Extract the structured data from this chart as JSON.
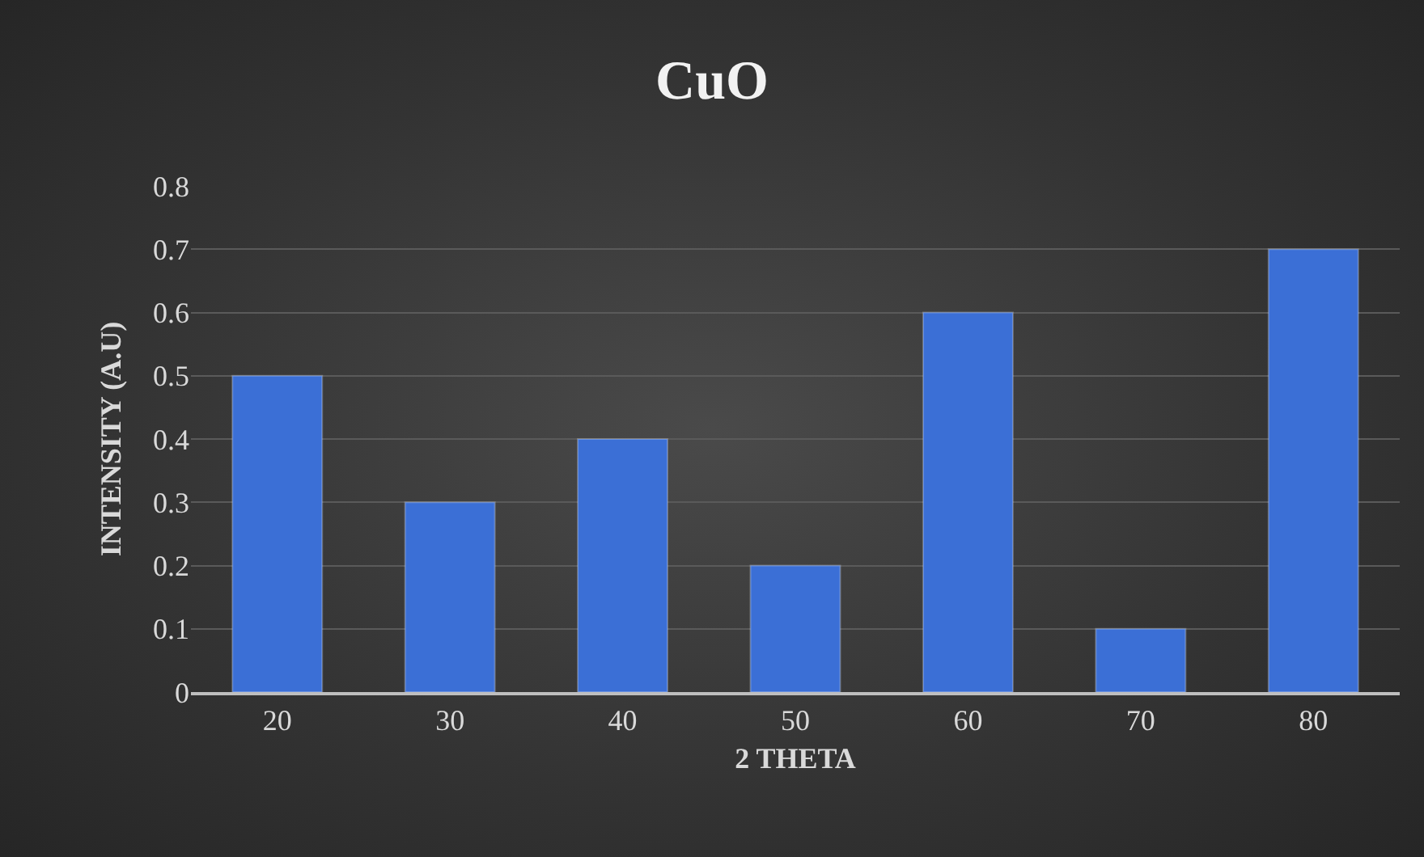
{
  "chart_data": {
    "type": "bar",
    "title": "CuO",
    "xlabel": "2 THETA",
    "ylabel": "INTENSITY (A.U)",
    "categories": [
      "20",
      "30",
      "40",
      "50",
      "60",
      "70",
      "80"
    ],
    "values": [
      0.5,
      0.3,
      0.4,
      0.2,
      0.6,
      0.1,
      0.7
    ],
    "color": "#3b6fd6",
    "ylim": [
      0,
      0.8
    ],
    "yticks": [
      0,
      0.1,
      0.2,
      0.3,
      0.4,
      0.5,
      0.6,
      0.7,
      0.8
    ],
    "grid": "y"
  }
}
